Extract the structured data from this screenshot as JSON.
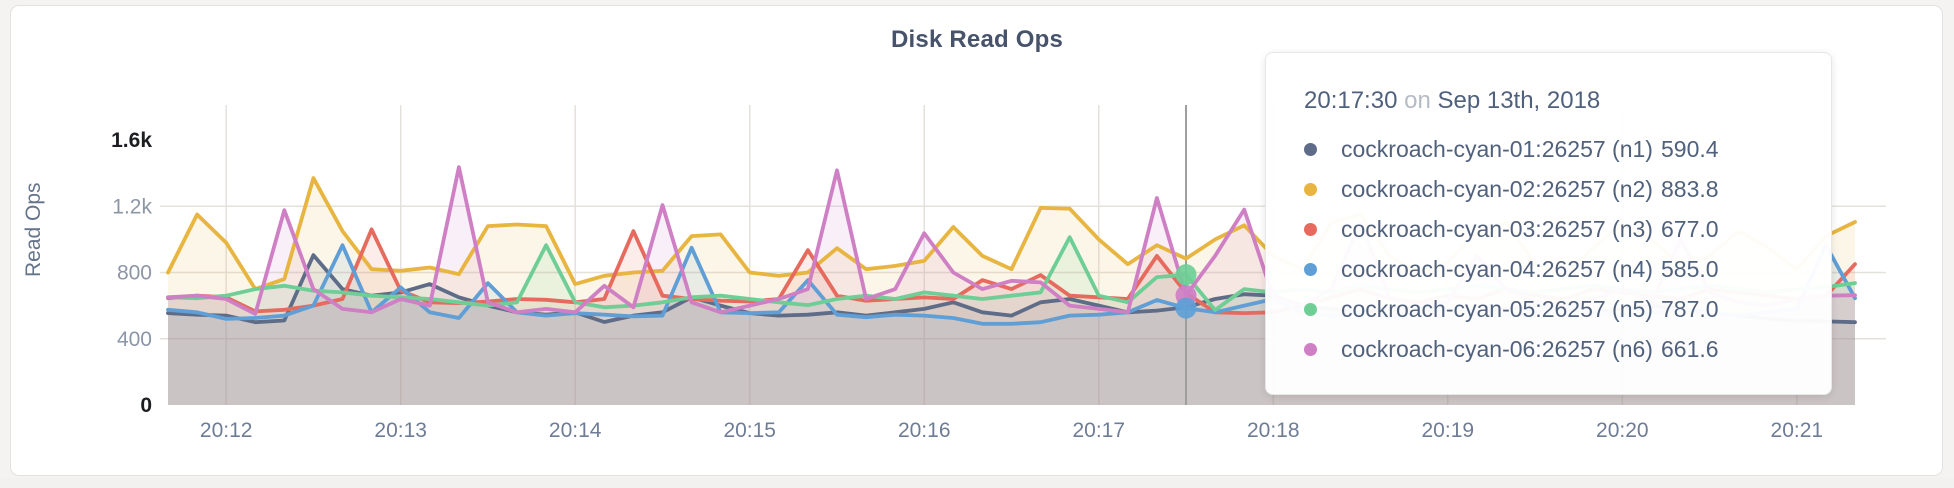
{
  "chart_data": {
    "type": "line",
    "title": "Disk Read Ops",
    "ylabel": "Read Ops",
    "ylim": [
      0,
      1600
    ],
    "grid": true,
    "x_start_time": "20:11:40",
    "x_interval_seconds": 10,
    "x_ticks": {
      "labels": [
        "20:12",
        "20:13",
        "20:14",
        "20:15",
        "20:16",
        "20:17",
        "20:18",
        "20:19",
        "20:20",
        "20:21"
      ],
      "first_index": 2,
      "index_step": 6
    },
    "y_ticks": [
      {
        "label": "1.6k",
        "value": 1600,
        "emph": true
      },
      {
        "label": "1.2k",
        "value": 1200,
        "emph": false
      },
      {
        "label": "800",
        "value": 800,
        "emph": false
      },
      {
        "label": "400",
        "value": 400,
        "emph": false
      },
      {
        "label": "0",
        "value": 0,
        "emph": true
      }
    ],
    "series": [
      {
        "id": "n1",
        "name": "cockroach-cyan-01:26257 (n1)",
        "color": "#5f6c87",
        "values": [
          555,
          545,
          540,
          500,
          510,
          905,
          700,
          660,
          680,
          730,
          650,
          600,
          560,
          545,
          560,
          501,
          540,
          560,
          650,
          600,
          555,
          540,
          545,
          560,
          540,
          560,
          580,
          620,
          560,
          540,
          620,
          640,
          600,
          560,
          570,
          590.4,
          640,
          669,
          660,
          600,
          580,
          560,
          580,
          600,
          580,
          560,
          580,
          600,
          580,
          560,
          580,
          600,
          580,
          560,
          540,
          520,
          510,
          505,
          500
        ]
      },
      {
        "id": "n2",
        "name": "cockroach-cyan-02:26257 (n2)",
        "color": "#e7b540",
        "values": [
          800,
          1150,
          980,
          700,
          760,
          1370,
          1050,
          820,
          810,
          830,
          790,
          1080,
          1090,
          1080,
          730,
          780,
          800,
          810,
          1020,
          1030,
          800,
          780,
          800,
          947,
          820,
          840,
          870,
          1075,
          900,
          820,
          1190,
          1185,
          1000,
          850,
          965,
          883.8,
          1000,
          1085,
          900,
          820,
          1100,
          1150,
          900,
          800,
          860,
          1050,
          1100,
          850,
          780,
          950,
          1100,
          1000,
          850,
          900,
          1050,
          950,
          820,
          1020,
          1105
        ]
      },
      {
        "id": "n3",
        "name": "cockroach-cyan-03:26257 (n3)",
        "color": "#e66a5e",
        "values": [
          645,
          660,
          650,
          565,
          575,
          600,
          640,
          1060,
          690,
          620,
          615,
          625,
          640,
          635,
          620,
          640,
          1050,
          660,
          640,
          630,
          625,
          640,
          935,
          660,
          630,
          640,
          650,
          640,
          754,
          700,
          784,
          660,
          650,
          640,
          900,
          677,
          560,
          555,
          560,
          600,
          650,
          700,
          640,
          620,
          660,
          640,
          700,
          660,
          640,
          700,
          680,
          660,
          640,
          700,
          680,
          660,
          640,
          658,
          851
        ]
      },
      {
        "id": "n4",
        "name": "cockroach-cyan-04:26257 (n4)",
        "color": "#5f9fd6",
        "values": [
          575,
          560,
          520,
          525,
          540,
          600,
          965,
          560,
          710,
          560,
          525,
          736,
          560,
          540,
          555,
          545,
          535,
          540,
          950,
          560,
          555,
          560,
          754,
          545,
          530,
          545,
          540,
          525,
          490,
          490,
          500,
          540,
          545,
          560,
          634,
          585,
          560,
          600,
          640,
          560,
          540,
          560,
          530,
          560,
          580,
          560,
          540,
          560,
          600,
          560,
          540,
          560,
          580,
          560,
          540,
          560,
          580,
          965,
          645
        ]
      },
      {
        "id": "n5",
        "name": "cockroach-cyan-05:26257 (n5)",
        "color": "#6fce95",
        "values": [
          650,
          645,
          660,
          700,
          720,
          690,
          680,
          660,
          650,
          640,
          620,
          600,
          620,
          965,
          620,
          590,
          600,
          620,
          650,
          660,
          640,
          620,
          603,
          640,
          660,
          640,
          680,
          660,
          640,
          660,
          680,
          1013,
          660,
          620,
          772,
          787,
          573,
          700,
          680,
          700,
          680,
          720,
          700,
          680,
          700,
          720,
          700,
          680,
          700,
          720,
          700,
          680,
          700,
          720,
          700,
          680,
          700,
          712,
          736
        ]
      },
      {
        "id": "n6",
        "name": "cockroach-cyan-06:26257 (n6)",
        "color": "#cf7fc4",
        "values": [
          650,
          660,
          640,
          550,
          1176,
          700,
          580,
          560,
          640,
          600,
          1436,
          620,
          560,
          580,
          560,
          720,
          590,
          1207,
          620,
          560,
          600,
          640,
          700,
          1417,
          640,
          700,
          1037,
          800,
          700,
          750,
          740,
          600,
          580,
          560,
          1250,
          661.6,
          900,
          1180,
          650,
          600,
          700,
          1100,
          650,
          600,
          620,
          900,
          700,
          620,
          600,
          640,
          700,
          620,
          1000,
          680,
          620,
          600,
          640,
          660,
          663
        ]
      }
    ],
    "hover": {
      "index": 35,
      "time": "20:17:30",
      "conjunction": "on",
      "date": "Sep 13th, 2018",
      "guideline_color": "#9e9e9e",
      "dot_series": [
        "n6",
        "n5",
        "n4"
      ],
      "values": {
        "n1": "590.4",
        "n2": "883.8",
        "n3": "677.0",
        "n4": "585.0",
        "n5": "787.0",
        "n6": "661.6"
      }
    }
  }
}
